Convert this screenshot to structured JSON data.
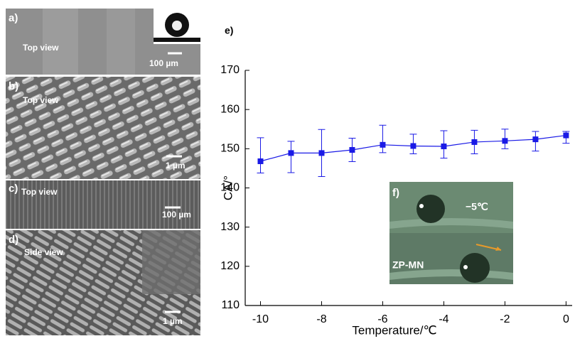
{
  "panels": [
    {
      "label": "a)",
      "caption": "Top view",
      "scale": "100 µm"
    },
    {
      "label": "b)",
      "caption": "Top view",
      "scale": "1 µm"
    },
    {
      "label": "c)",
      "caption": "Top view",
      "scale": "100 µm"
    },
    {
      "label": "d)",
      "caption": "Side view",
      "scale": "1 µm"
    }
  ],
  "chart_label": "e)",
  "inset": {
    "label": "f)",
    "temperature": "−5℃",
    "sample": "ZP-MN"
  },
  "chart_data": {
    "type": "line",
    "x_label": "Temperature/℃",
    "y_label": "CA/°",
    "x": [
      -10,
      -9,
      -8,
      -7,
      -6,
      -5,
      -4,
      -3,
      -2,
      -1,
      0
    ],
    "series": [
      {
        "color": "#1a1ae6",
        "values": [
          146.8,
          148.9,
          148.9,
          149.7,
          151.0,
          150.7,
          150.6,
          151.7,
          152.0,
          152.4,
          153.4
        ],
        "error_plus": [
          6,
          3,
          6,
          3,
          5,
          3,
          4,
          3,
          3,
          2,
          1
        ],
        "error_minus": [
          3,
          5,
          6,
          3,
          2,
          2,
          3,
          3,
          2,
          3,
          2
        ]
      }
    ],
    "xlim": [
      -10.5,
      0.2
    ],
    "ylim": [
      110,
      170
    ],
    "xticks": [
      -10,
      -8,
      -6,
      -4,
      -2,
      0
    ],
    "yticks": [
      110,
      120,
      130,
      140,
      150,
      160,
      170
    ]
  }
}
